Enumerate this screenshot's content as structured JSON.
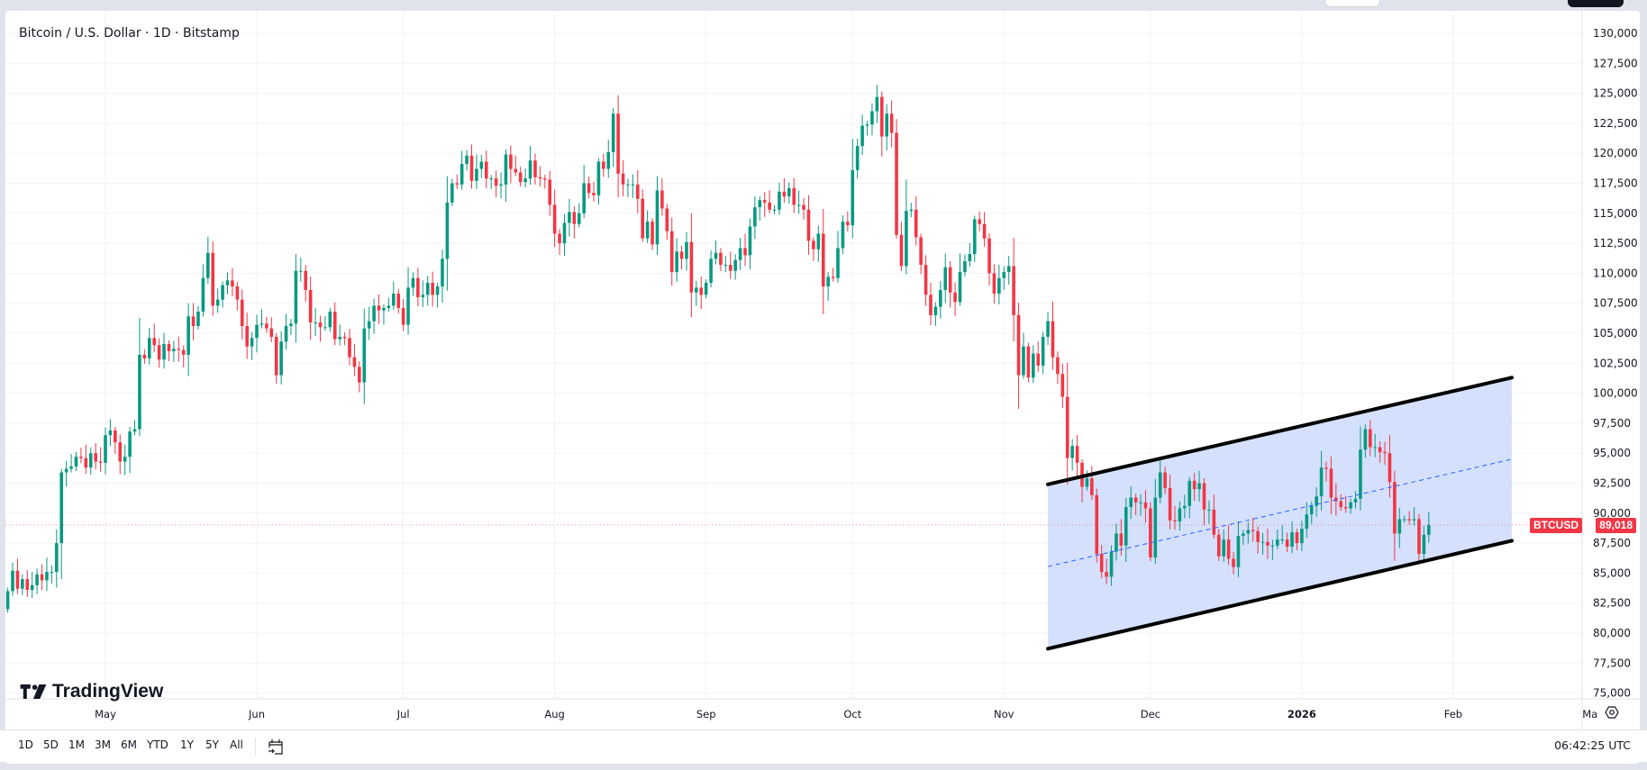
{
  "header": {
    "title": "Bitcoin / U.S. Dollar · 1D · Bitstamp"
  },
  "logo": {
    "text": "TradingView"
  },
  "price_label": {
    "symbol": "BTCUSD",
    "value": "89,018",
    "color": "#f23645"
  },
  "toolbar": {
    "ranges": [
      "1D",
      "5D",
      "1M",
      "3M",
      "6M",
      "YTD",
      "1Y",
      "5Y",
      "All"
    ],
    "calendar_icon": "calendar-goto-icon",
    "clock": "06:42:25 UTC"
  },
  "settings_icon": "gear-icon",
  "colors": {
    "up": "#089981",
    "down": "#f23645",
    "channel_fill": "#d2defc",
    "channel_line": "#000000",
    "median_line": "#2962ff"
  },
  "chart_data": {
    "type": "candlestick",
    "title": "Bitcoin / U.S. Dollar · 1D · Bitstamp",
    "interval": "1D",
    "first_date": "2025-04-11",
    "last_date": "2026-01-27",
    "ylim": [
      75000,
      130000
    ],
    "y_ticks": [
      "130,000",
      "127,500",
      "125,000",
      "122,500",
      "120,000",
      "117,500",
      "115,000",
      "112,500",
      "110,000",
      "107,500",
      "105,000",
      "102,500",
      "100,000",
      "97,500",
      "95,000",
      "92,500",
      "90,000",
      "87,500",
      "85,000",
      "82,500",
      "80,000",
      "77,500",
      "75,000"
    ],
    "x_ticks": [
      {
        "label": "May",
        "date": "2025-05-01"
      },
      {
        "label": "Jun",
        "date": "2025-06-01"
      },
      {
        "label": "Jul",
        "date": "2025-07-01"
      },
      {
        "label": "Aug",
        "date": "2025-08-01"
      },
      {
        "label": "Sep",
        "date": "2025-09-01"
      },
      {
        "label": "Oct",
        "date": "2025-10-01"
      },
      {
        "label": "Nov",
        "date": "2025-11-01"
      },
      {
        "label": "Dec",
        "date": "2025-12-01"
      },
      {
        "label": "2026",
        "date": "2026-01-01"
      },
      {
        "label": "Feb",
        "date": "2026-02-01"
      },
      {
        "label": "Ma",
        "date": "2026-03-01"
      }
    ],
    "grid": true,
    "close": [
      83500,
      85200,
      83700,
      84500,
      83600,
      84000,
      84900,
      84400,
      85100,
      85100,
      87500,
      93400,
      93700,
      93900,
      94700,
      94600,
      93800,
      95000,
      94300,
      94200,
      96500,
      96900,
      95900,
      94300,
      94700,
      96800,
      97000,
      103200,
      102900,
      104600,
      104000,
      102800,
      104100,
      103500,
      103700,
      103600,
      103200,
      106400,
      105600,
      106800,
      109600,
      111700,
      107300,
      107800,
      109000,
      109400,
      108900,
      107800,
      105600,
      103900,
      104600,
      105700,
      105800,
      105400,
      104700,
      101500,
      104300,
      105600,
      105800,
      110200,
      110200,
      108600,
      105900,
      105900,
      105500,
      105500,
      106800,
      104500,
      104700,
      104600,
      103000,
      102200,
      100900,
      105400,
      106000,
      107300,
      106900,
      107100,
      107300,
      108300,
      107100,
      105700,
      108800,
      109600,
      108000,
      108200,
      109200,
      108200,
      108900,
      111200,
      115900,
      117500,
      117400,
      119100,
      119800,
      117700,
      118700,
      119300,
      117900,
      117900,
      117300,
      117400,
      119900,
      118700,
      118400,
      117600,
      117900,
      119400,
      118000,
      117900,
      117800,
      115700,
      113300,
      112500,
      114200,
      115100,
      114100,
      115000,
      117500,
      116700,
      116500,
      119300,
      118700,
      120100,
      123300,
      118300,
      117400,
      117400,
      117400,
      116200,
      112900,
      114300,
      112400,
      116900,
      115400,
      113500,
      110100,
      111800,
      111200,
      112600,
      108400,
      108800,
      108200,
      109200,
      111200,
      111700,
      110700,
      110700,
      110200,
      111100,
      112100,
      111500,
      113900,
      115500,
      116100,
      115900,
      115300,
      115300,
      116800,
      116400,
      117100,
      115700,
      115700,
      115300,
      112700,
      112000,
      113300,
      108900,
      109700,
      109600,
      112100,
      114300,
      114000,
      118600,
      120600,
      122300,
      122400,
      123500,
      124700,
      121400,
      123300,
      121700,
      113200,
      110600,
      115200,
      115300,
      113000,
      110700,
      108200,
      106500,
      107200,
      108600,
      110500,
      108400,
      107600,
      110100,
      111000,
      111600,
      114500,
      114100,
      112900,
      110000,
      108300,
      109600,
      110100,
      110600,
      106500,
      101500,
      103900,
      101300,
      103300,
      102300,
      104700,
      106000,
      103000,
      101600,
      99700,
      94600,
      95600,
      94200,
      92200,
      92900,
      91500,
      86600,
      85100,
      84700,
      86800,
      88300,
      87300,
      90500,
      91300,
      90900,
      90900,
      90400,
      86300,
      91300,
      93400,
      92100,
      89400,
      89300,
      90400,
      90600,
      92700,
      92000,
      92500,
      90300,
      90300,
      88200,
      86400,
      87800,
      86200,
      85500,
      88100,
      88300,
      88600,
      88500,
      87600,
      87600,
      87300,
      87300,
      87800,
      87800,
      87200,
      88400,
      87500,
      88700,
      89900,
      90600,
      91400,
      93800,
      93700,
      91300,
      91000,
      90500,
      90400,
      90900,
      91200,
      95300,
      97000,
      95500,
      95500,
      95100,
      95000,
      92600,
      88300,
      89500,
      89500,
      89400,
      89500,
      86600,
      88200,
      89018
    ],
    "last_price": 89018,
    "annotations": [
      {
        "type": "parallel_channel",
        "upper": [
          {
            "date": "2025-11-10",
            "price": 92400
          },
          {
            "date": "2026-02-13",
            "price": 101300
          }
        ],
        "lower": [
          {
            "date": "2025-11-10",
            "price": 78700
          },
          {
            "date": "2026-02-13",
            "price": 87700
          }
        ],
        "median_dashed": true
      }
    ]
  }
}
